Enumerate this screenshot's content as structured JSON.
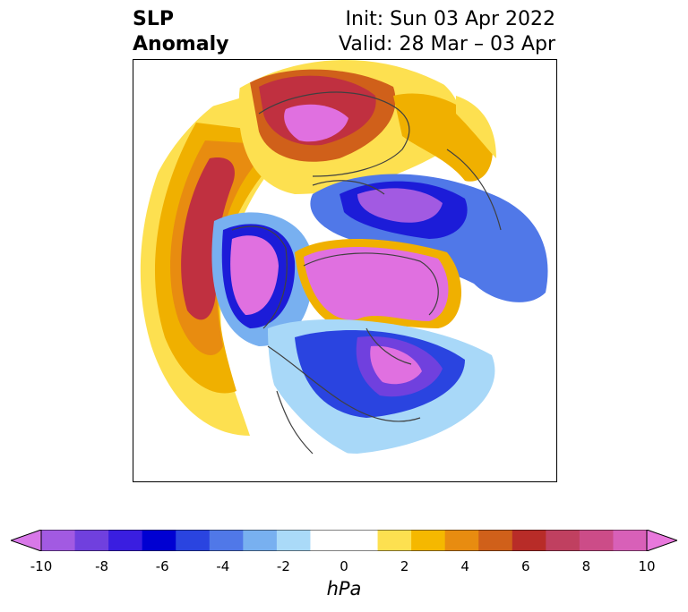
{
  "title": {
    "left_line1": "SLP",
    "left_line2": "Anomaly",
    "right_line1": "Init: Sun 03 Apr 2022",
    "right_line2": "Valid: 28 Mar – 03 Apr"
  },
  "colorbar": {
    "units": "hPa",
    "ticks": [
      "-10",
      "-8",
      "-6",
      "-4",
      "-2",
      "0",
      "2",
      "4",
      "6",
      "8",
      "10"
    ],
    "min_color": "#d878e8",
    "max_color": "#e878dc",
    "colors": [
      "#a25ae2",
      "#7040de",
      "#3a1ee0",
      "#0000d2",
      "#2a44e0",
      "#5078e8",
      "#78b0f0",
      "#aadaf8",
      "#ffffff",
      "#ffffff",
      "#fde050",
      "#f5b800",
      "#e88c10",
      "#d0601a",
      "#b82c28",
      "#c04060",
      "#cc4c88",
      "#d860b8"
    ]
  },
  "map": {
    "projection": "north-polar-stereographic",
    "colors": {
      "strong_neg": "#e070e0",
      "neg": "#1c1cd8",
      "weak_neg": "#a8d8f8",
      "weak_pos": "#fde050",
      "pos": "#f0b000",
      "strong_pos": "#c03040",
      "coast": "#404040"
    }
  }
}
